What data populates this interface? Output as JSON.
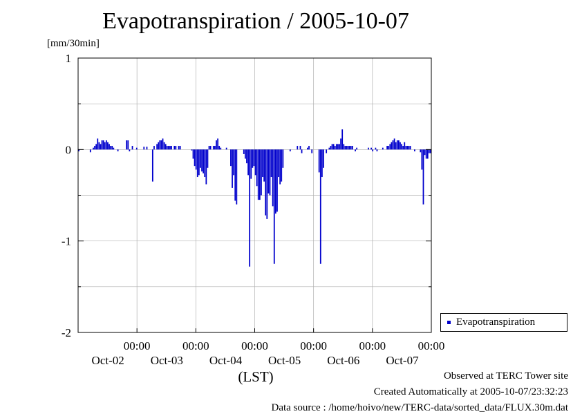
{
  "chart_data": {
    "type": "bar",
    "title": "Evapotranspiration / 2005-10-07",
    "ylabel": "[mm/30min]",
    "xlabel": "(LST)",
    "ylim": [
      -2,
      1
    ],
    "yticks": [
      1,
      0,
      -1,
      -2
    ],
    "ytick_labels": [
      "1",
      "0",
      "-1",
      "-2"
    ],
    "x_ticks": [
      {
        "x": 1.5,
        "time": "00:00",
        "date": "Oct-02"
      },
      {
        "x": 2.5,
        "time": "00:00",
        "date": "Oct-03"
      },
      {
        "x": 3.5,
        "time": "00:00",
        "date": "Oct-04"
      },
      {
        "x": 4.5,
        "time": "00:00",
        "date": "Oct-05"
      },
      {
        "x": 5.5,
        "time": "00:00",
        "date": "Oct-06"
      },
      {
        "x": 6.5,
        "time": "00:00",
        "date": "Oct-07"
      }
    ],
    "xlim": [
      0.5,
      6.5
    ],
    "grid": true,
    "color": "#0000cc",
    "legend_position": "right",
    "series": [
      {
        "name": "Evapotranspiration",
        "values": [
          -0.02,
          0,
          0,
          0,
          0,
          0,
          0,
          0,
          -0.03,
          0,
          0.02,
          0.04,
          0.06,
          0.12,
          0.08,
          0.06,
          0.1,
          0.1,
          0.08,
          0.1,
          0.08,
          0.06,
          0.04,
          0.04,
          0.02,
          0,
          0,
          -0.02,
          0,
          0,
          0,
          0,
          0,
          0.1,
          0.1,
          -0.02,
          0,
          0.04,
          0,
          0,
          0.02,
          0,
          0,
          0,
          0,
          0.03,
          0,
          0.03,
          0,
          0,
          0,
          -0.35,
          0.04,
          0,
          0.06,
          0.08,
          0.1,
          0.1,
          0.12,
          0.08,
          0.06,
          0.04,
          0.04,
          0.04,
          0.04,
          0,
          0.04,
          0.04,
          0,
          0.04,
          0.04,
          0,
          0,
          0,
          0,
          0,
          0,
          0,
          -0.01,
          -0.1,
          -0.18,
          -0.22,
          -0.3,
          -0.28,
          -0.2,
          -0.24,
          -0.26,
          -0.3,
          -0.38,
          -0.2,
          0.04,
          0.04,
          0,
          0.04,
          0.04,
          0.1,
          0.12,
          0.04,
          0.02,
          0,
          0,
          0,
          0.02,
          0,
          0,
          -0.18,
          -0.42,
          -0.28,
          -0.56,
          -0.6,
          0,
          0,
          0,
          0,
          -0.05,
          -0.1,
          -0.15,
          -0.28,
          -1.28,
          -0.32,
          -0.2,
          -0.18,
          -0.28,
          -0.4,
          -0.55,
          -0.55,
          -0.5,
          -0.3,
          -0.35,
          -0.72,
          -0.76,
          -0.48,
          -0.5,
          -0.3,
          -0.62,
          -1.25,
          -0.7,
          -0.68,
          -0.3,
          -0.38,
          -0.35,
          -0.2,
          0,
          0,
          0,
          0,
          -0.02,
          0,
          0,
          0,
          0,
          0.04,
          0,
          0.04,
          -0.04,
          0,
          0,
          0,
          0.02,
          0.04,
          0,
          -0.04,
          0,
          0,
          0,
          0,
          -0.25,
          -1.25,
          -0.3,
          -0.2,
          0,
          -0.04,
          0,
          0.02,
          0.04,
          0.06,
          0.06,
          0.04,
          0.06,
          0.06,
          0.06,
          0.12,
          0.22,
          0.06,
          0.04,
          0.04,
          0.04,
          0.04,
          0.04,
          0.04,
          0,
          -0.02,
          0.02,
          0,
          0,
          0,
          0,
          0,
          0,
          0,
          0.02,
          0,
          0.02,
          -0.02,
          0,
          0.02,
          -0.02,
          0,
          0,
          0,
          0.02,
          0,
          0,
          0.04,
          0.04,
          0.06,
          0.08,
          0.1,
          0.12,
          0.08,
          0.1,
          0.1,
          0.08,
          0.06,
          0.04,
          0.08,
          0.04,
          0.04,
          0.04,
          0.04,
          0,
          0,
          -0.02,
          0,
          0,
          0,
          -0.03,
          -0.22,
          -0.6,
          -0.06,
          -0.1,
          -0.1,
          -0.04,
          -0.04
        ]
      }
    ]
  },
  "footer": {
    "line1": "Observed at TERC Tower site",
    "line2": "Created Automatically at 2005-10-07/23:32:23",
    "line3": "Data source : /home/hoivo/new/TERC-data/sorted_data/FLUX.30m.dat"
  }
}
